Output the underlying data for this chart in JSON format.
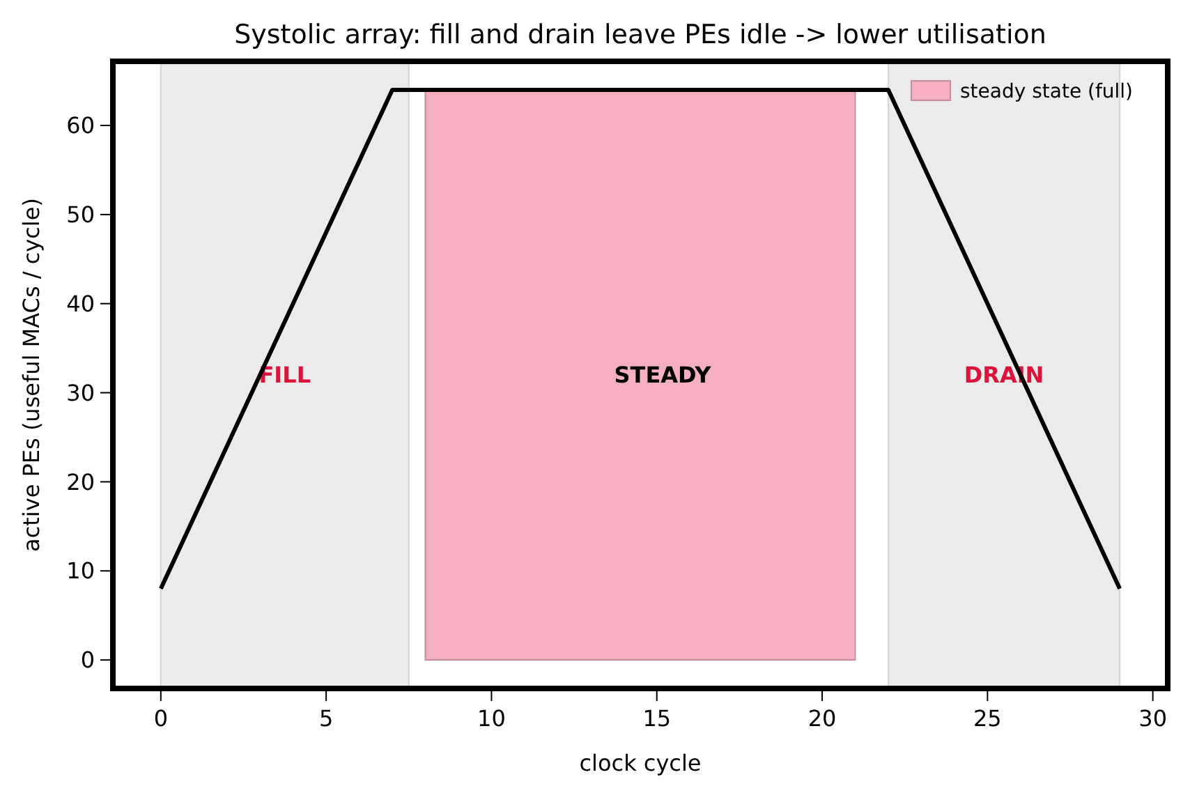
{
  "chart_data": {
    "type": "line",
    "title": "Systolic array: fill and drain leave PEs idle -> lower utilisation",
    "xlabel": "clock cycle",
    "ylabel": "active PEs (useful MACs / cycle)",
    "series": [
      {
        "type": "area",
        "name": "steady state (full)",
        "color": "#f4afc1",
        "x": [
          8,
          21
        ],
        "values": [
          64,
          64
        ]
      },
      {
        "color": "#000000",
        "x": [
          0,
          7,
          22,
          29
        ],
        "values": [
          8,
          64,
          64,
          8
        ]
      }
    ],
    "bands": [
      {
        "axis": "x",
        "from": 0,
        "to": 7.5,
        "label": "FILL",
        "color": "#ebebeb"
      },
      {
        "axis": "x",
        "from": 22,
        "to": 29,
        "label": "DRAIN",
        "color": "#ebebeb"
      }
    ],
    "annotations": [
      "STEADY"
    ],
    "xlim": [
      -1.45,
      30.45
    ],
    "ylim": [
      -3.2,
      67.2
    ],
    "xticks": [
      0,
      5,
      10,
      15,
      20,
      25,
      30
    ],
    "yticks": [
      0,
      10,
      20,
      30,
      40,
      50,
      60
    ],
    "legend": "top right",
    "grid": false,
    "marker": "none",
    "line_style": "solid"
  }
}
